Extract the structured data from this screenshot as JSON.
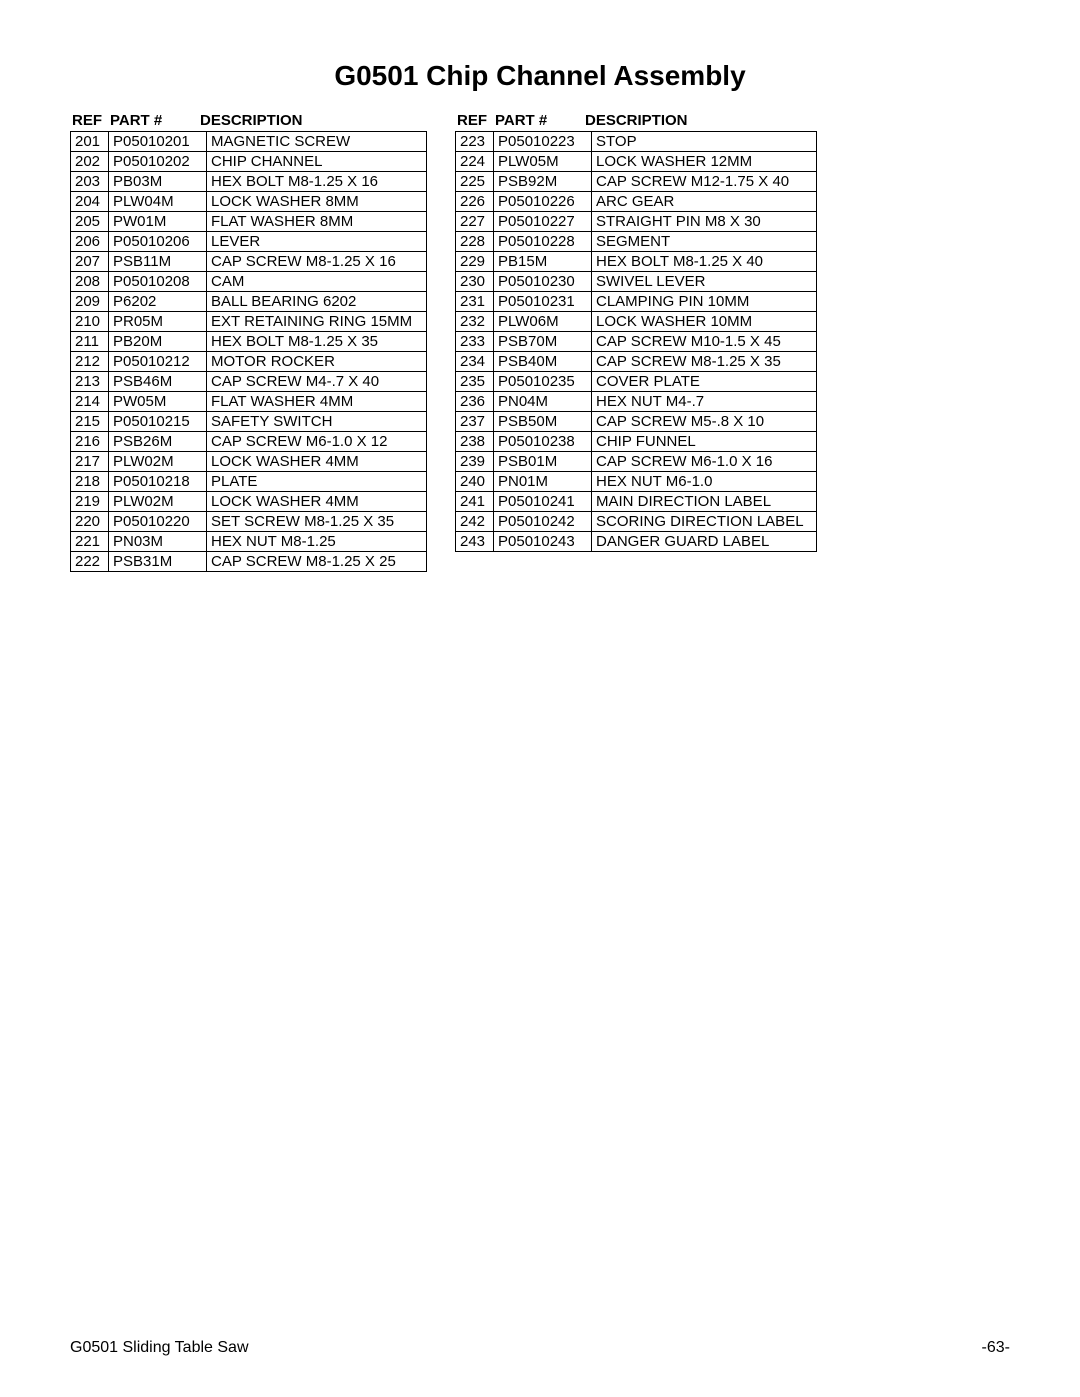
{
  "title": "G0501 Chip Channel Assembly",
  "headers": {
    "ref": "REF",
    "part": "PART #",
    "description": "DESCRIPTION"
  },
  "left_table": {
    "rows": [
      {
        "ref": "201",
        "part": "P05010201",
        "desc": "MAGNETIC SCREW"
      },
      {
        "ref": "202",
        "part": "P05010202",
        "desc": "CHIP CHANNEL"
      },
      {
        "ref": "203",
        "part": "PB03M",
        "desc": "HEX BOLT M8-1.25 X 16"
      },
      {
        "ref": "204",
        "part": "PLW04M",
        "desc": "LOCK WASHER 8MM"
      },
      {
        "ref": "205",
        "part": "PW01M",
        "desc": "FLAT WASHER 8MM"
      },
      {
        "ref": "206",
        "part": "P05010206",
        "desc": "LEVER"
      },
      {
        "ref": "207",
        "part": "PSB11M",
        "desc": "CAP SCREW M8-1.25 X 16"
      },
      {
        "ref": "208",
        "part": "P05010208",
        "desc": "CAM"
      },
      {
        "ref": "209",
        "part": "P6202",
        "desc": "BALL BEARING 6202"
      },
      {
        "ref": "210",
        "part": "PR05M",
        "desc": "EXT RETAINING RING 15MM"
      },
      {
        "ref": "211",
        "part": "PB20M",
        "desc": "HEX BOLT M8-1.25 X 35"
      },
      {
        "ref": "212",
        "part": "P05010212",
        "desc": "MOTOR ROCKER"
      },
      {
        "ref": "213",
        "part": "PSB46M",
        "desc": "CAP SCREW M4-.7 X 40"
      },
      {
        "ref": "214",
        "part": "PW05M",
        "desc": "FLAT WASHER 4MM"
      },
      {
        "ref": "215",
        "part": "P05010215",
        "desc": "SAFETY SWITCH"
      },
      {
        "ref": "216",
        "part": "PSB26M",
        "desc": "CAP SCREW M6-1.0 X 12"
      },
      {
        "ref": "217",
        "part": "PLW02M",
        "desc": "LOCK WASHER 4MM"
      },
      {
        "ref": "218",
        "part": "P05010218",
        "desc": "PLATE"
      },
      {
        "ref": "219",
        "part": "PLW02M",
        "desc": "LOCK WASHER 4MM"
      },
      {
        "ref": "220",
        "part": "P05010220",
        "desc": "SET SCREW M8-1.25 X 35"
      },
      {
        "ref": "221",
        "part": "PN03M",
        "desc": "HEX NUT M8-1.25"
      },
      {
        "ref": "222",
        "part": "PSB31M",
        "desc": "CAP SCREW M8-1.25 X 25"
      }
    ]
  },
  "right_table": {
    "rows": [
      {
        "ref": "223",
        "part": "P05010223",
        "desc": "STOP"
      },
      {
        "ref": "224",
        "part": "PLW05M",
        "desc": "LOCK WASHER 12MM"
      },
      {
        "ref": "225",
        "part": "PSB92M",
        "desc": "CAP SCREW M12-1.75 X 40"
      },
      {
        "ref": "226",
        "part": "P05010226",
        "desc": "ARC GEAR"
      },
      {
        "ref": "227",
        "part": "P05010227",
        "desc": "STRAIGHT PIN M8 X 30"
      },
      {
        "ref": "228",
        "part": "P05010228",
        "desc": "SEGMENT"
      },
      {
        "ref": "229",
        "part": "PB15M",
        "desc": "HEX BOLT M8-1.25 X 40"
      },
      {
        "ref": "230",
        "part": "P05010230",
        "desc": "SWIVEL LEVER"
      },
      {
        "ref": "231",
        "part": "P05010231",
        "desc": "CLAMPING PIN 10MM"
      },
      {
        "ref": "232",
        "part": "PLW06M",
        "desc": "LOCK WASHER 10MM"
      },
      {
        "ref": "233",
        "part": "PSB70M",
        "desc": "CAP SCREW M10-1.5 X 45"
      },
      {
        "ref": "234",
        "part": "PSB40M",
        "desc": "CAP SCREW M8-1.25 X 35"
      },
      {
        "ref": "235",
        "part": "P05010235",
        "desc": "COVER PLATE"
      },
      {
        "ref": "236",
        "part": "PN04M",
        "desc": "HEX NUT M4-.7"
      },
      {
        "ref": "237",
        "part": "PSB50M",
        "desc": "CAP SCREW M5-.8 X 10"
      },
      {
        "ref": "238",
        "part": "P05010238",
        "desc": "CHIP FUNNEL"
      },
      {
        "ref": "239",
        "part": "PSB01M",
        "desc": "CAP SCREW M6-1.0 X 16"
      },
      {
        "ref": "240",
        "part": "PN01M",
        "desc": "HEX NUT M6-1.0"
      },
      {
        "ref": "241",
        "part": "P05010241",
        "desc": "MAIN DIRECTION LABEL"
      },
      {
        "ref": "242",
        "part": "P05010242",
        "desc": "SCORING DIRECTION LABEL"
      },
      {
        "ref": "243",
        "part": "P05010243",
        "desc": "DANGER GUARD LABEL"
      }
    ]
  },
  "footer": {
    "left": "G0501 Sliding Table Saw",
    "right": "-63-"
  }
}
